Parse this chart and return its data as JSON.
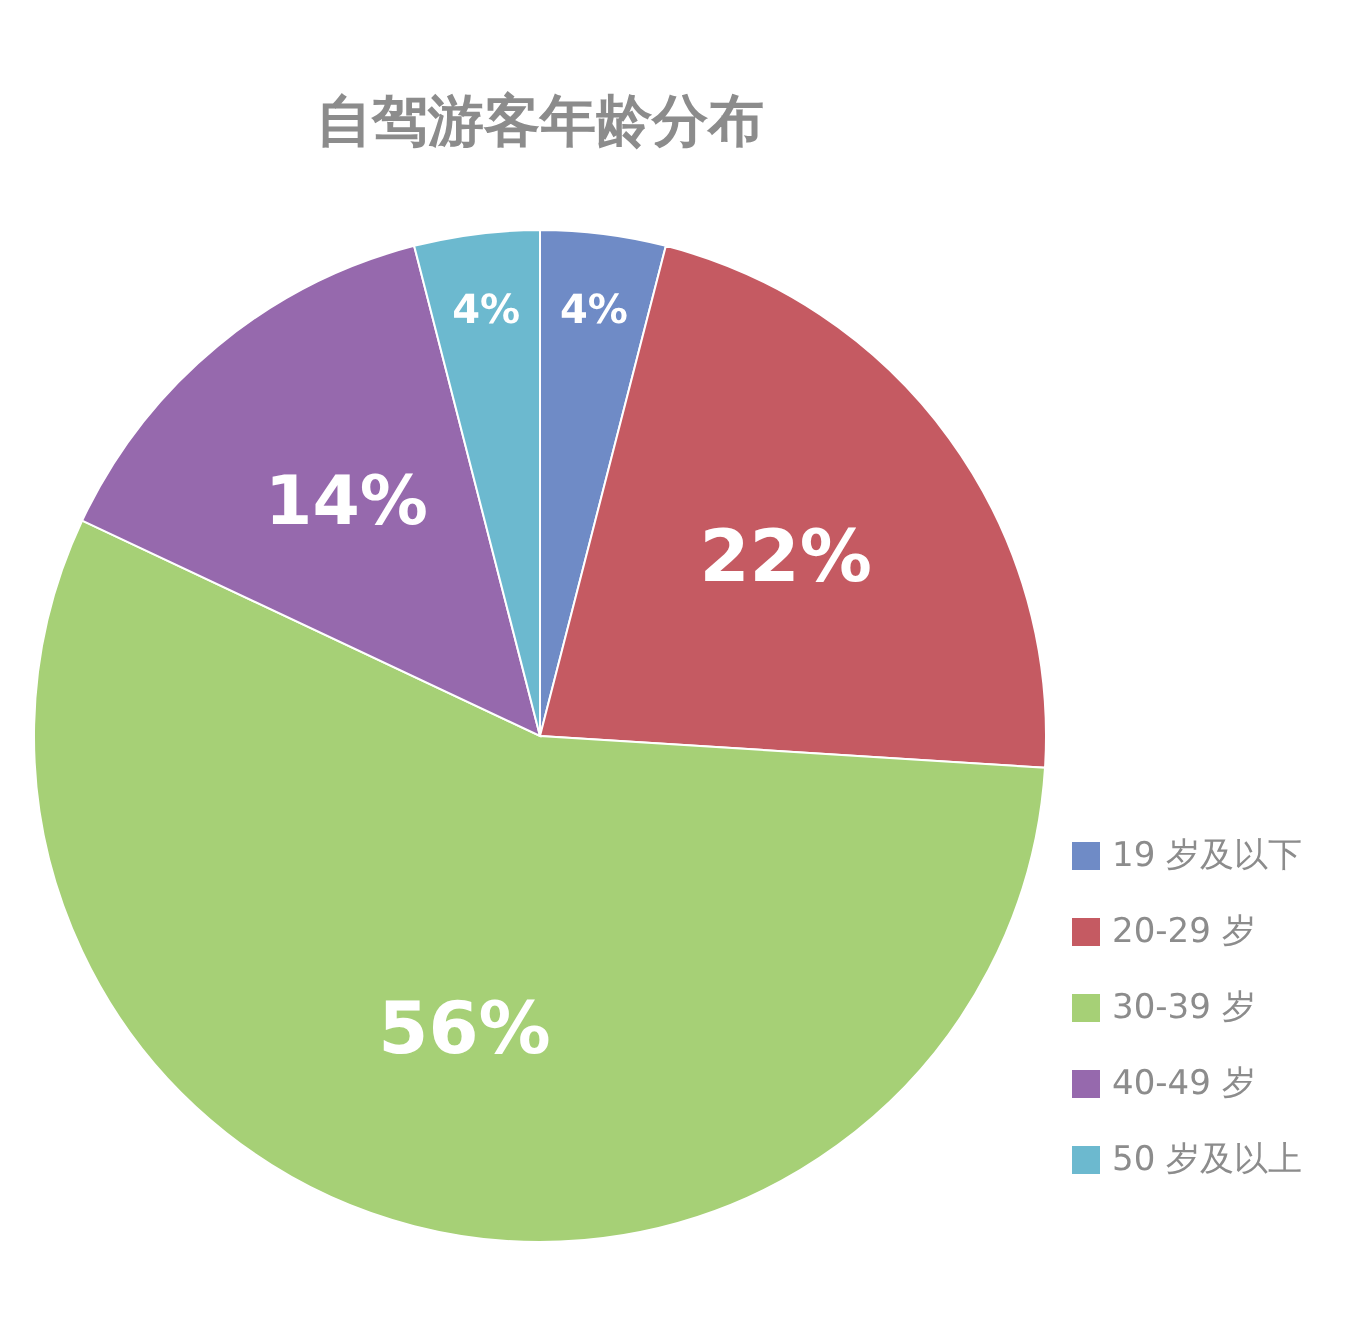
{
  "chart_data": {
    "type": "pie",
    "title": "自驾游客年龄分布",
    "categories": [
      "19 岁及以下",
      "20-29 岁",
      "30-39 岁",
      "40-49 岁",
      "50 岁及以上"
    ],
    "values": [
      4,
      22,
      56,
      14,
      4
    ],
    "colors": [
      "#6f8bc6",
      "#c55a62",
      "#a6d076",
      "#9669ad",
      "#6cb9cf"
    ],
    "value_labels": [
      "4%",
      "22%",
      "56%",
      "14%",
      "4%"
    ],
    "legend": "bottom right"
  }
}
